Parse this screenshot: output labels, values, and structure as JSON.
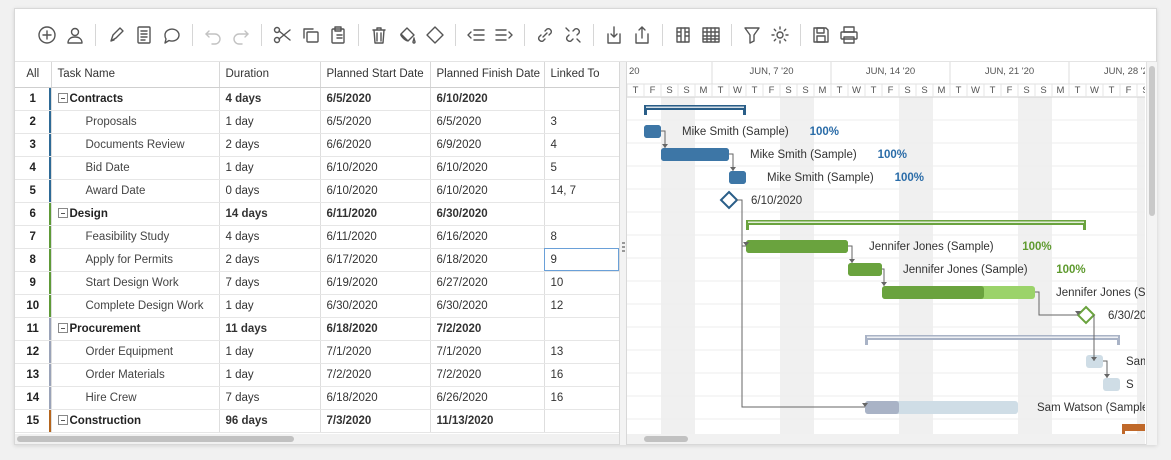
{
  "toolbar": {
    "groups": [
      [
        "add-task-icon",
        "add-user-icon"
      ],
      [
        "edit-icon",
        "notes-icon",
        "comment-icon"
      ],
      [
        "undo-icon",
        "redo-icon"
      ],
      [
        "cut-icon",
        "copy-icon",
        "paste-icon"
      ],
      [
        "delete-icon",
        "paint-bucket-icon",
        "milestone-icon"
      ],
      [
        "outdent-icon",
        "indent-icon"
      ],
      [
        "link-icon",
        "unlink-icon"
      ],
      [
        "import-icon",
        "export-icon"
      ],
      [
        "columns-icon",
        "table-icon"
      ],
      [
        "filter-icon",
        "settings-icon"
      ],
      [
        "save-icon",
        "print-icon"
      ]
    ],
    "disabled": [
      "undo-icon",
      "redo-icon"
    ]
  },
  "grid": {
    "columns": [
      "All",
      "Task Name",
      "Duration",
      "Planned Start Date",
      "Planned Finish Date",
      "Linked To"
    ],
    "rows": [
      {
        "id": "1",
        "name": "Contracts",
        "duration": "4 days",
        "start": "6/5/2020",
        "finish": "6/10/2020",
        "linked": "",
        "summary": true,
        "color": "#2e6a96"
      },
      {
        "id": "2",
        "name": "Proposals",
        "duration": "1 day",
        "start": "6/5/2020",
        "finish": "6/5/2020",
        "linked": "3",
        "summary": false,
        "color": "#2e6a96"
      },
      {
        "id": "3",
        "name": "Documents Review",
        "duration": "2 days",
        "start": "6/6/2020",
        "finish": "6/9/2020",
        "linked": "4",
        "summary": false,
        "color": "#2e6a96"
      },
      {
        "id": "4",
        "name": "Bid Date",
        "duration": "1 day",
        "start": "6/10/2020",
        "finish": "6/10/2020",
        "linked": "5",
        "summary": false,
        "color": "#2e6a96"
      },
      {
        "id": "5",
        "name": "Award Date",
        "duration": "0 days",
        "start": "6/10/2020",
        "finish": "6/10/2020",
        "linked": "14, 7",
        "summary": false,
        "color": "#2e6a96"
      },
      {
        "id": "6",
        "name": "Design",
        "duration": "14 days",
        "start": "6/11/2020",
        "finish": "6/30/2020",
        "linked": "",
        "summary": true,
        "color": "#5e9a38"
      },
      {
        "id": "7",
        "name": "Feasibility Study",
        "duration": "4 days",
        "start": "6/11/2020",
        "finish": "6/16/2020",
        "linked": "8",
        "summary": false,
        "color": "#5e9a38"
      },
      {
        "id": "8",
        "name": "Apply for Permits",
        "duration": "2 days",
        "start": "6/17/2020",
        "finish": "6/18/2020",
        "linked": "9",
        "summary": false,
        "color": "#5e9a38"
      },
      {
        "id": "9",
        "name": "Start Design Work",
        "duration": "7 days",
        "start": "6/19/2020",
        "finish": "6/27/2020",
        "linked": "10",
        "summary": false,
        "color": "#5e9a38"
      },
      {
        "id": "10",
        "name": "Complete Design Work",
        "duration": "1 day",
        "start": "6/30/2020",
        "finish": "6/30/2020",
        "linked": "12",
        "summary": false,
        "color": "#5e9a38"
      },
      {
        "id": "11",
        "name": "Procurement",
        "duration": "11 days",
        "start": "6/18/2020",
        "finish": "7/2/2020",
        "linked": "",
        "summary": true,
        "color": "#9aa3b8"
      },
      {
        "id": "12",
        "name": "Order Equipment",
        "duration": "1 day",
        "start": "7/1/2020",
        "finish": "7/1/2020",
        "linked": "13",
        "summary": false,
        "color": "#9aa3b8"
      },
      {
        "id": "13",
        "name": "Order Materials",
        "duration": "1 day",
        "start": "7/2/2020",
        "finish": "7/2/2020",
        "linked": "16",
        "summary": false,
        "color": "#9aa3b8"
      },
      {
        "id": "14",
        "name": "Hire Crew",
        "duration": "7 days",
        "start": "6/18/2020",
        "finish": "6/26/2020",
        "linked": "16",
        "summary": false,
        "color": "#9aa3b8"
      },
      {
        "id": "15",
        "name": "Construction",
        "duration": "96 days",
        "start": "7/3/2020",
        "finish": "11/13/2020",
        "linked": "",
        "summary": true,
        "color": "#b5651d"
      }
    ]
  },
  "gantt": {
    "week_labels": [
      "20",
      "JUN, 7 '20",
      "JUN, 14 '20",
      "JUN, 21 '20",
      "JUN, 28 '20"
    ],
    "day_letters": [
      "T",
      "F",
      "S",
      "S",
      "M",
      "T",
      "W",
      "T",
      "F",
      "S",
      "S",
      "M",
      "T",
      "W",
      "T",
      "F",
      "S",
      "S",
      "M",
      "T",
      "W",
      "T",
      "F",
      "S",
      "S",
      "M",
      "T",
      "W",
      "T",
      "F",
      "S"
    ],
    "bar_labels": [
      {
        "row": 1,
        "name": "Mike Smith (Sample)",
        "pct": "100%"
      },
      {
        "row": 2,
        "name": "Mike Smith (Sample)",
        "pct": "100%"
      },
      {
        "row": 3,
        "name": "Mike Smith (Sample)",
        "pct": "100%"
      },
      {
        "row": 4,
        "name": "6/10/2020",
        "pct": ""
      },
      {
        "row": 6,
        "name": "Jennifer Jones (Sample)",
        "pct": "100%"
      },
      {
        "row": 7,
        "name": "Jennifer Jones (Sample)",
        "pct": "100%"
      },
      {
        "row": 8,
        "name": "Jennifer Jones (Sa",
        "pct": ""
      },
      {
        "row": 9,
        "name": "6/30/20",
        "pct": ""
      },
      {
        "row": 11,
        "name": "Sam",
        "pct": ""
      },
      {
        "row": 12,
        "name": "S",
        "pct": ""
      },
      {
        "row": 13,
        "name": "Sam Watson (Sample)",
        "pct": ""
      }
    ],
    "colors": {
      "blue": "#3d76a6",
      "blue_dark": "#2a5e88",
      "green": "#6aa33e",
      "green_light": "#9bd36a",
      "grey": "#a9b3c6",
      "grey_light": "#cfdde6",
      "orange": "#c0692a",
      "pct_blue": "#2a6ca8",
      "pct_green": "#5e9a2e"
    }
  }
}
